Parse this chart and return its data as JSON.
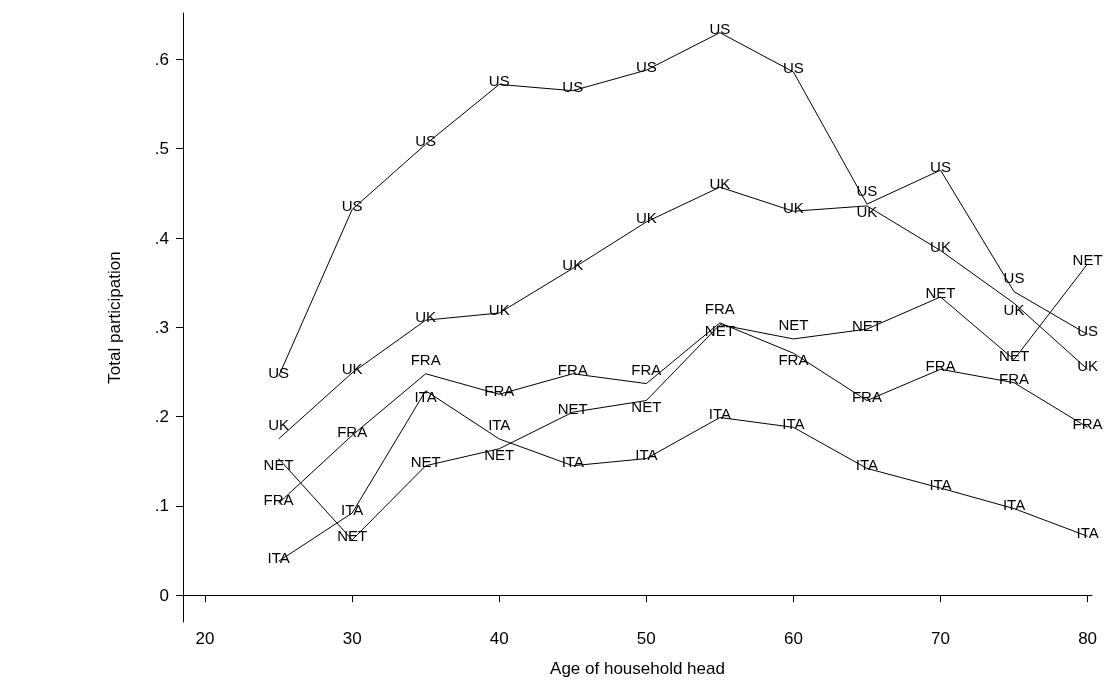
{
  "chart_data": {
    "type": "line",
    "xlabel": "Age of household head",
    "ylabel": "Total participation",
    "x": [
      25,
      30,
      35,
      40,
      45,
      50,
      55,
      60,
      65,
      70,
      75,
      80
    ],
    "xlim": [
      18.5,
      80.3
    ],
    "xticks": [
      20,
      30,
      40,
      50,
      60,
      70,
      80
    ],
    "ylim": [
      -0.03,
      0.652
    ],
    "yticks": [
      {
        "value": 0,
        "label": "0"
      },
      {
        "value": 0.1,
        "label": ".1"
      },
      {
        "value": 0.2,
        "label": ".2"
      },
      {
        "value": 0.3,
        "label": ".3"
      },
      {
        "value": 0.4,
        "label": ".4"
      },
      {
        "value": 0.5,
        "label": ".5"
      },
      {
        "value": 0.6,
        "label": ".6"
      }
    ],
    "grid": false,
    "legend": false,
    "marker": "none",
    "line_style": "solid",
    "series": [
      {
        "name": "US",
        "color": "#000000",
        "values": [
          0.245,
          0.432,
          0.505,
          0.572,
          0.565,
          0.588,
          0.63,
          0.586,
          0.438,
          0.476,
          0.34,
          0.292
        ]
      },
      {
        "name": "UK",
        "color": "#000000",
        "values": [
          0.175,
          0.249,
          0.308,
          0.316,
          0.366,
          0.418,
          0.457,
          0.43,
          0.436,
          0.386,
          0.327,
          0.253
        ]
      },
      {
        "name": "FRA",
        "color": "#000000",
        "values": [
          0.103,
          0.179,
          0.248,
          0.225,
          0.248,
          0.237,
          0.305,
          0.271,
          0.218,
          0.253,
          0.238,
          0.188
        ]
      },
      {
        "name": "NET",
        "color": "#000000",
        "values": [
          0.153,
          0.062,
          0.145,
          0.164,
          0.205,
          0.218,
          0.303,
          0.287,
          0.298,
          0.334,
          0.264,
          0.371
        ]
      },
      {
        "name": "ITA",
        "color": "#000000",
        "values": [
          0.038,
          0.092,
          0.229,
          0.175,
          0.145,
          0.153,
          0.199,
          0.188,
          0.142,
          0.12,
          0.097,
          0.066
        ]
      }
    ]
  }
}
